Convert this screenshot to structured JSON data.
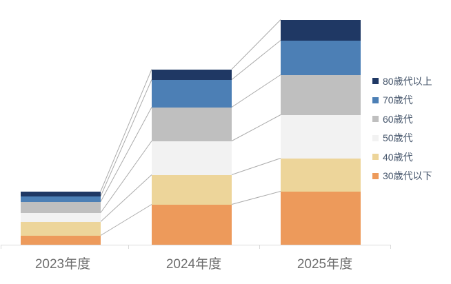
{
  "chart_data": {
    "type": "bar",
    "variant": "stacked-column",
    "title": "",
    "categories": [
      "2023年度",
      "2024年度",
      "2025年度"
    ],
    "series": [
      {
        "name": "30歳代以下",
        "color": "#ED9A5B",
        "values": [
          13,
          58,
          77
        ]
      },
      {
        "name": "40歳代",
        "color": "#EDD59A",
        "values": [
          20,
          43,
          48
        ]
      },
      {
        "name": "50歳代",
        "color": "#F2F2F2",
        "values": [
          13,
          49,
          63
        ]
      },
      {
        "name": "60歳代",
        "color": "#BFBFBF",
        "values": [
          16,
          49,
          58
        ]
      },
      {
        "name": "70歳代",
        "color": "#4C7FB5",
        "values": [
          8,
          40,
          50
        ]
      },
      {
        "name": "80歳代以上",
        "color": "#1F3864",
        "values": [
          7,
          15,
          30
        ]
      }
    ],
    "stack_totals": [
      77,
      254,
      326
    ],
    "value_axis_visible": false,
    "value_units": "relative units (no value axis shown; values estimated from bar pixel heights)",
    "gridlines": false,
    "series_connector_lines": true,
    "legend_position": "right"
  },
  "legend": {
    "items": [
      {
        "label": "80歳代以上",
        "color": "#1F3864"
      },
      {
        "label": "70歳代",
        "color": "#4C7FB5"
      },
      {
        "label": "60歳代",
        "color": "#BFBFBF"
      },
      {
        "label": "50歳代",
        "color": "#F2F2F2"
      },
      {
        "label": "40歳代",
        "color": "#EDD59A"
      },
      {
        "label": "30歳代以下",
        "color": "#ED9A5B"
      }
    ]
  },
  "x_axis": {
    "labels": [
      "2023年度",
      "2024年度",
      "2025年度"
    ],
    "line_color": "#D9D9D9",
    "label_color": "#6E6E6E"
  },
  "colors": {
    "connector_line": "#ABABAB",
    "background": "#FFFFFF"
  }
}
